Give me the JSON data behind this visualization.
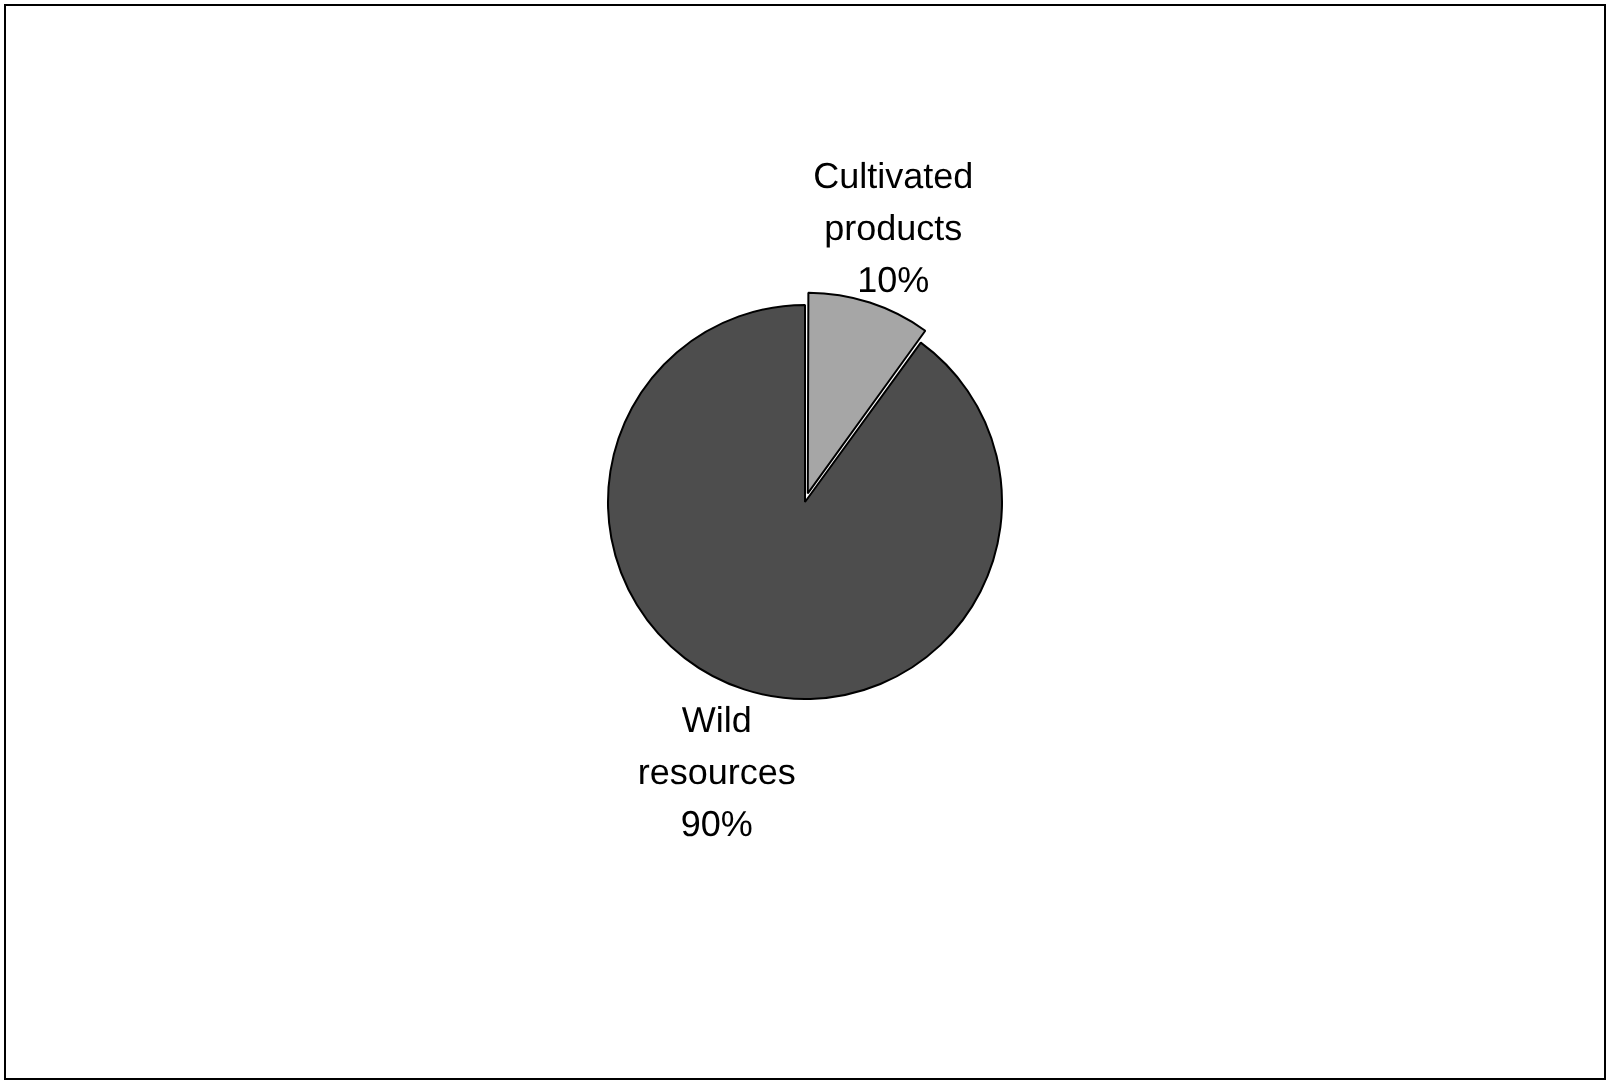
{
  "chart_data": {
    "type": "pie",
    "categories": [
      "Cultivated products",
      "Wild resources"
    ],
    "values": [
      10,
      90
    ],
    "colors": [
      "#a6a6a6",
      "#4d4d4d"
    ],
    "value_labels": [
      "10%",
      "90%"
    ],
    "legend": false
  }
}
